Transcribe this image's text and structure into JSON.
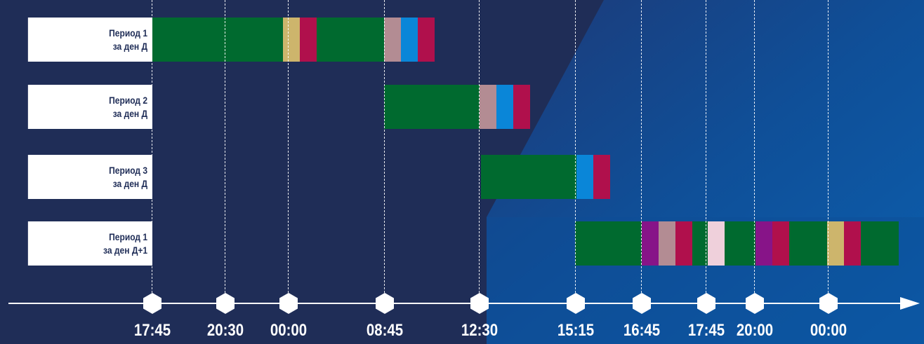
{
  "colors": {
    "background_dark": "#1f2d57",
    "background_light": "#0d5aa0",
    "green": "#006a2f",
    "tan": "#cdb56c",
    "crimson": "#b0104c",
    "mauve": "#b38c93",
    "blue": "#0a86d8",
    "purple": "#871488",
    "pink": "#efd0db"
  },
  "timeline": {
    "ticks": [
      "17:45",
      "20:30",
      "00:00",
      "08:45",
      "12:30",
      "15:15",
      "16:45",
      "17:45",
      "20:00",
      "00:00"
    ]
  },
  "rows": [
    {
      "label_line1": "Период 1",
      "label_line2": "за ден Д",
      "segments": [
        {
          "color": "green",
          "name": "green"
        },
        {
          "color": "tan",
          "name": "tan"
        },
        {
          "color": "crimson",
          "name": "crimson"
        },
        {
          "color": "green",
          "name": "green"
        },
        {
          "color": "mauve",
          "name": "mauve"
        },
        {
          "color": "blue",
          "name": "blue"
        },
        {
          "color": "crimson",
          "name": "crimson"
        }
      ]
    },
    {
      "label_line1": "Период 2",
      "label_line2": "за ден Д",
      "segments": [
        {
          "color": "green",
          "name": "green"
        },
        {
          "color": "mauve",
          "name": "mauve"
        },
        {
          "color": "blue",
          "name": "blue"
        },
        {
          "color": "crimson",
          "name": "crimson"
        }
      ]
    },
    {
      "label_line1": "Период 3",
      "label_line2": "за ден Д",
      "segments": [
        {
          "color": "green",
          "name": "green"
        },
        {
          "color": "blue",
          "name": "blue"
        },
        {
          "color": "crimson",
          "name": "crimson"
        }
      ]
    },
    {
      "label_line1": "Период 1",
      "label_line2": "за ден Д+1",
      "segments": [
        {
          "color": "green",
          "name": "green"
        },
        {
          "color": "purple",
          "name": "purple"
        },
        {
          "color": "mauve",
          "name": "mauve"
        },
        {
          "color": "crimson",
          "name": "crimson"
        },
        {
          "color": "green",
          "name": "green"
        },
        {
          "color": "pink",
          "name": "pink"
        },
        {
          "color": "green",
          "name": "green"
        },
        {
          "color": "purple",
          "name": "purple"
        },
        {
          "color": "crimson",
          "name": "crimson"
        },
        {
          "color": "green",
          "name": "green"
        },
        {
          "color": "tan",
          "name": "tan"
        },
        {
          "color": "crimson",
          "name": "crimson"
        },
        {
          "color": "green",
          "name": "green"
        }
      ]
    }
  ]
}
